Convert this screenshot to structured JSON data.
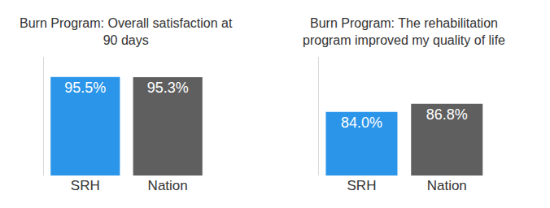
{
  "chart_data": [
    {
      "type": "bar",
      "title": "Burn Program: Overall satisfaction at 90 days",
      "categories": [
        "SRH",
        "Nation"
      ],
      "values": [
        95.5,
        95.3
      ],
      "value_labels": [
        "95.5%",
        "95.3%"
      ],
      "colors": [
        "#2b95e9",
        "#5f5f5f"
      ],
      "ylim": [
        0,
        115
      ],
      "yticks": [],
      "data_labels": true,
      "tick_labels": "x",
      "grid": false
    },
    {
      "type": "bar",
      "title": "Burn Program: The rehabilitation program improved my quality of life",
      "categories": [
        "SRH",
        "Nation"
      ],
      "values": [
        84.0,
        86.8
      ],
      "value_labels": [
        "84.0%",
        "86.8%"
      ],
      "colors": [
        "#2b95e9",
        "#5f5f5f"
      ],
      "ylim": [
        62,
        103
      ],
      "yticks": [],
      "data_labels": true,
      "tick_labels": "x",
      "grid": false
    }
  ]
}
